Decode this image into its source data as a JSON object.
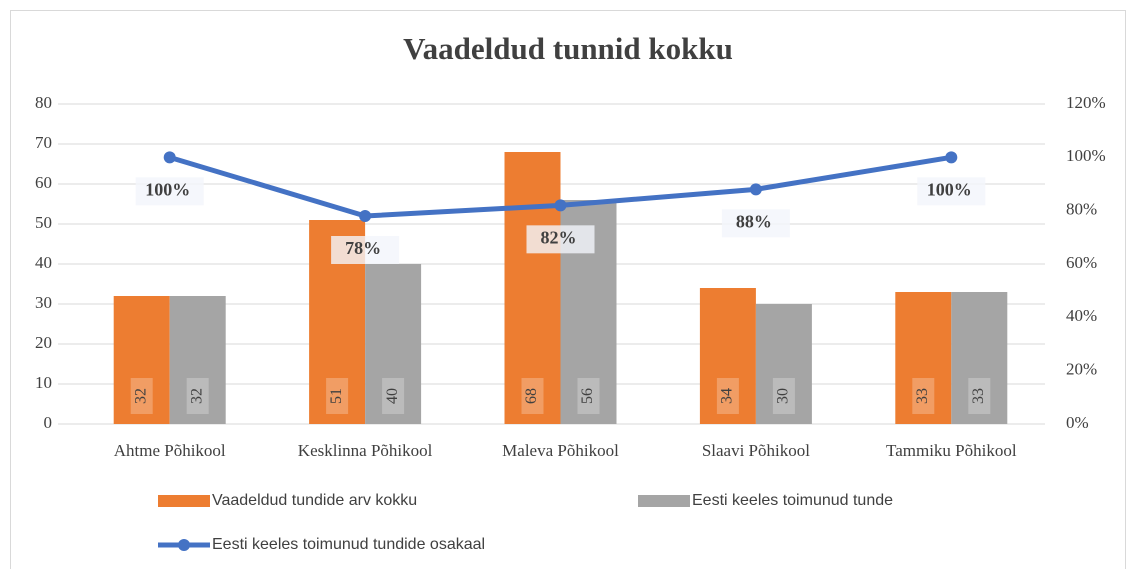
{
  "chart_data": {
    "type": "bar",
    "title": "Vaadeldud tunnid kokku",
    "categories": [
      "Ahtme Põhikool",
      "Kesklinna Põhikool",
      "Maleva Põhikool",
      "Slaavi Põhikool",
      "Tammiku Põhikool"
    ],
    "series": [
      {
        "name": "Vaadeldud tundide arv kokku",
        "color": "#ed7d31",
        "type": "bar",
        "values": [
          32,
          51,
          68,
          34,
          33
        ]
      },
      {
        "name": "Eesti keeles toimunud tunde",
        "color": "#a5a5a5",
        "type": "bar",
        "values": [
          32,
          40,
          56,
          30,
          33
        ]
      },
      {
        "name": "Eesti keeles toimunud tundide osakaal",
        "color": "#4472c4",
        "type": "line",
        "axis": "y2",
        "values": [
          100,
          78,
          82,
          88,
          100
        ],
        "value_labels": [
          "100%",
          "78%",
          "82%",
          "88%",
          "100%"
        ]
      }
    ],
    "ylim": [
      0,
      80
    ],
    "yticks": [
      0,
      10,
      20,
      30,
      40,
      50,
      60,
      70,
      80
    ],
    "y2lim": [
      0,
      120
    ],
    "y2ticks": [
      {
        "value": 0,
        "label": "0%"
      },
      {
        "value": 20,
        "label": "20%"
      },
      {
        "value": 40,
        "label": "40%"
      },
      {
        "value": 60,
        "label": "60%"
      },
      {
        "value": 80,
        "label": "80%"
      },
      {
        "value": 100,
        "label": "100%"
      },
      {
        "value": 120,
        "label": "120%"
      }
    ],
    "grid": true,
    "legend": "bottom"
  }
}
